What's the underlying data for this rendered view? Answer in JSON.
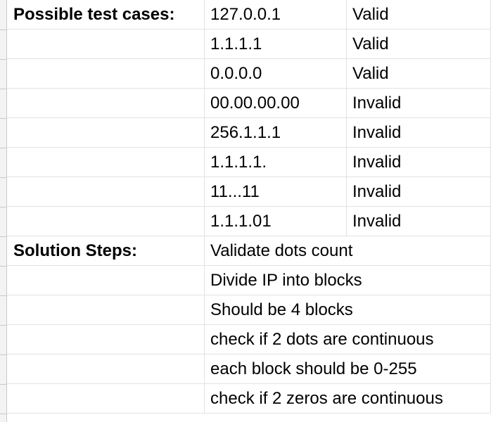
{
  "sheet": {
    "test_cases_label": "Possible test cases:",
    "test_cases": [
      {
        "input": "127.0.0.1",
        "result": "Valid"
      },
      {
        "input": "1.1.1.1",
        "result": "Valid"
      },
      {
        "input": "0.0.0.0",
        "result": "Valid"
      },
      {
        "input": "00.00.00.00",
        "result": "Invalid"
      },
      {
        "input": "256.1.1.1",
        "result": "Invalid"
      },
      {
        "input": "1.1.1.1.",
        "result": "Invalid"
      },
      {
        "input": "11...11",
        "result": "Invalid"
      },
      {
        "input": "1.1.1.01",
        "result": "Invalid"
      }
    ],
    "solution_label": "Solution Steps:",
    "steps": [
      "Validate dots count",
      "Divide IP into blocks",
      "Should be 4 blocks",
      "check if 2 dots are continuous",
      "each block should be 0-255",
      "check if 2 zeros are continuous"
    ]
  }
}
